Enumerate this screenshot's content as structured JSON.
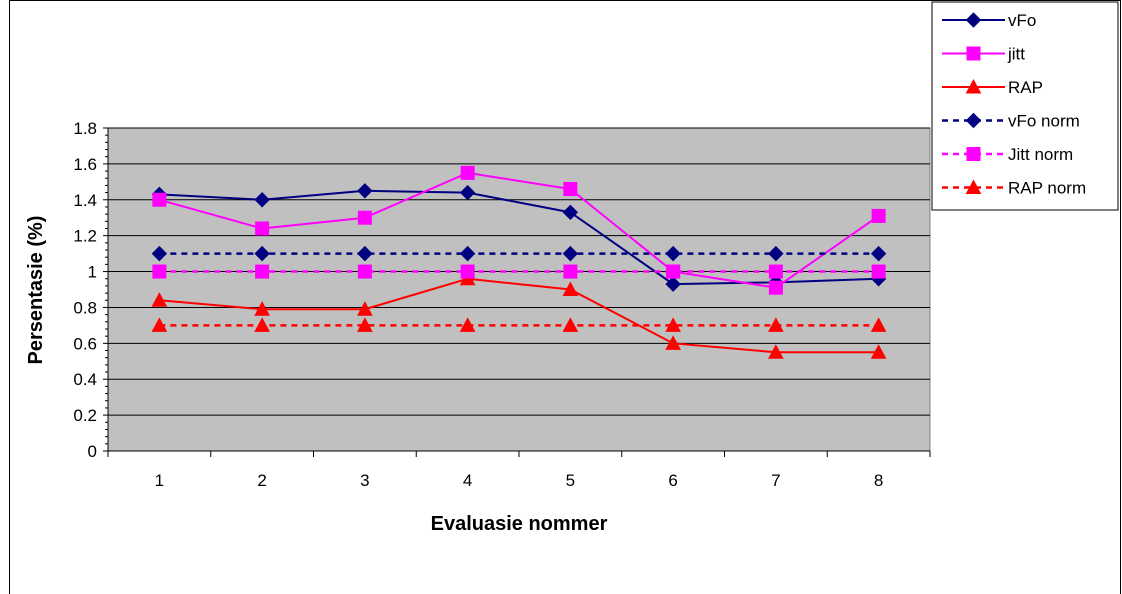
{
  "chart_data": {
    "type": "line",
    "title": "",
    "xlabel": "Evaluasie nommer",
    "ylabel": "Persentasie (%)",
    "categories": [
      "1",
      "2",
      "3",
      "4",
      "5",
      "6",
      "7",
      "8"
    ],
    "ylim": [
      0,
      1.8
    ],
    "yticks": [
      "0",
      "0.2",
      "0.4",
      "0.6",
      "0.8",
      "1",
      "1.2",
      "1.4",
      "1.6",
      "1.8"
    ],
    "ytick_values": [
      0,
      0.2,
      0.4,
      0.6,
      0.8,
      1.0,
      1.2,
      1.4,
      1.6,
      1.8
    ],
    "grid": true,
    "plot_background": "#c0c0c0",
    "legend_position": "top-right",
    "series": [
      {
        "name": "vFo",
        "values": [
          1.43,
          1.4,
          1.45,
          1.44,
          1.33,
          0.93,
          0.94,
          0.96
        ],
        "color": "#000080",
        "marker": "diamond",
        "dash": "solid"
      },
      {
        "name": "jitt",
        "values": [
          1.4,
          1.24,
          1.3,
          1.55,
          1.46,
          1.0,
          0.91,
          1.31
        ],
        "color": "#ff00ff",
        "marker": "square",
        "dash": "solid"
      },
      {
        "name": "RAP",
        "values": [
          0.84,
          0.79,
          0.79,
          0.96,
          0.9,
          0.6,
          0.55,
          0.55
        ],
        "color": "#ff0000",
        "marker": "triangle",
        "dash": "solid"
      },
      {
        "name": "vFo norm",
        "values": [
          1.1,
          1.1,
          1.1,
          1.1,
          1.1,
          1.1,
          1.1,
          1.1
        ],
        "color": "#000080",
        "marker": "diamond",
        "dash": "dashed"
      },
      {
        "name": "Jitt norm",
        "values": [
          1.0,
          1.0,
          1.0,
          1.0,
          1.0,
          1.0,
          1.0,
          1.0
        ],
        "color": "#ff00ff",
        "marker": "square",
        "dash": "dashed"
      },
      {
        "name": "RAP norm",
        "values": [
          0.7,
          0.7,
          0.7,
          0.7,
          0.7,
          0.7,
          0.7,
          0.7
        ],
        "color": "#ff0000",
        "marker": "triangle",
        "dash": "dashed"
      }
    ]
  }
}
